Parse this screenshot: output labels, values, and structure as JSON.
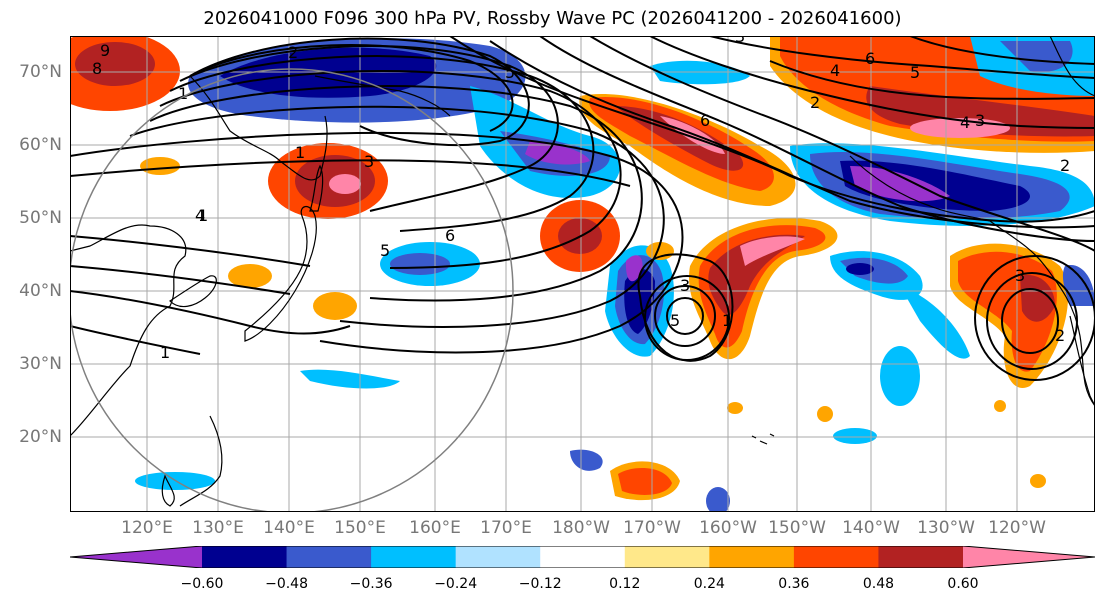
{
  "title": "2026041000 F096 300 hPa PV, Rossby Wave PC (2026041200 - 2026041600)",
  "lat_labels": [
    "70°N",
    "60°N",
    "50°N",
    "40°N",
    "30°N",
    "20°N"
  ],
  "lon_labels": [
    "120°E",
    "130°E",
    "140°E",
    "150°E",
    "160°E",
    "170°E",
    "180°W",
    "170°W",
    "160°W",
    "150°W",
    "140°W",
    "130°W",
    "120°W"
  ],
  "colorbar": {
    "ticks": [
      "−0.60",
      "−0.48",
      "−0.36",
      "−0.24",
      "−0.12",
      "0.12",
      "0.24",
      "0.36",
      "0.48",
      "0.60"
    ],
    "colors": [
      "#9932cc",
      "#000090",
      "#3a5acd",
      "#00bfff",
      "#b0e2ff",
      "#ffffff",
      "#ffe88a",
      "#ffa500",
      "#ff4500",
      "#b22222",
      "#ff85a8"
    ]
  },
  "contour_labels": [
    "1",
    "1",
    "1",
    "1",
    "1",
    "2",
    "2",
    "2",
    "2",
    "3",
    "3",
    "3",
    "3",
    "3",
    "4",
    "4",
    "4",
    "5",
    "5",
    "5",
    "5",
    "6",
    "6",
    "6",
    "8",
    "9"
  ],
  "colors": {
    "contour": "#000000",
    "grid": "#a9a9a9",
    "circle": "#808080"
  }
}
